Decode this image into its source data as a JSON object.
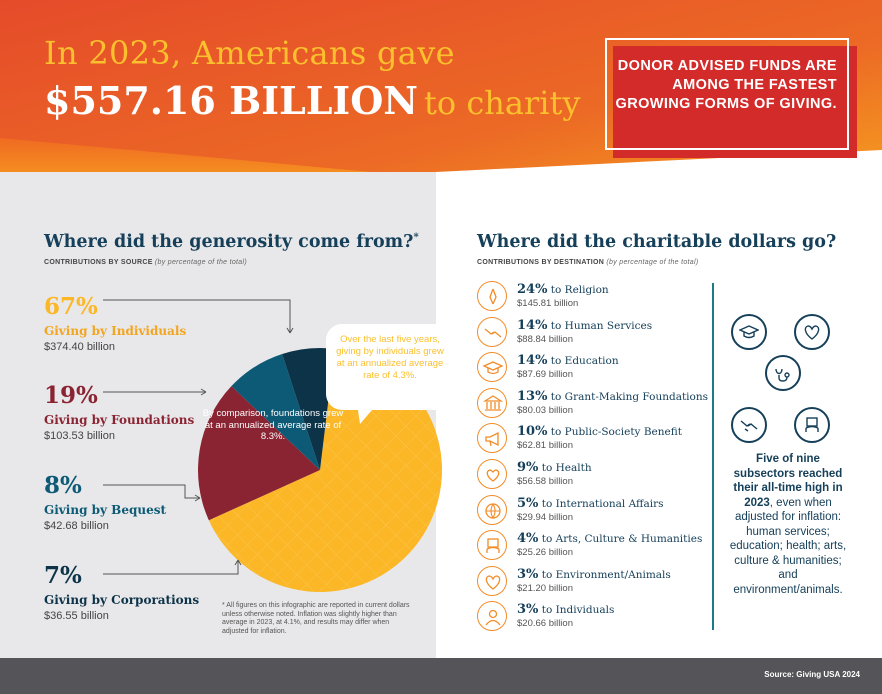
{
  "header": {
    "line1": "In 2023, Americans gave",
    "amount": "$557.16 BILLION",
    "line2_tail": "to charity",
    "callout": "DONOR ADVISED FUNDS ARE AMONG THE FASTEST GROWING FORMS OF GIVING."
  },
  "sources": {
    "title": "Where did the generosity come from?",
    "title_mark": "*",
    "subtitle": "CONTRIBUTIONS BY SOURCE",
    "subtitle_note": "(by percentage of the total)",
    "items": [
      {
        "pct": "67%",
        "name": "Giving by Individuals",
        "amount": "$374.40 billion",
        "color": "#fbb726"
      },
      {
        "pct": "19%",
        "name": "Giving by Foundations",
        "amount": "$103.53 billion",
        "color": "#8a2332"
      },
      {
        "pct": "8%",
        "name": "Giving by Bequest",
        "amount": "$42.68 billion",
        "color": "#0c5a75"
      },
      {
        "pct": "7%",
        "name": "Giving by Corporations",
        "amount": "$36.55 billion",
        "color": "#0d3348"
      }
    ],
    "bubble": "Over the last five years, giving by individuals grew at an annualized average rate of 4.3%.",
    "comparison": "By comparison, foundations grew at an annualized average rate of 8.3%.",
    "footnote": "* All figures on this infographic are reported in current dollars unless otherwise noted. Inflation was slightly higher than average in 2023, at 4.1%, and results may differ when adjusted for inflation."
  },
  "chart_data": {
    "type": "pie",
    "categories": [
      "Giving by Individuals",
      "Giving by Foundations",
      "Giving by Bequest",
      "Giving by Corporations"
    ],
    "values": [
      67,
      19,
      8,
      7
    ],
    "amounts_billion": [
      374.4,
      103.53,
      42.68,
      36.55
    ],
    "colors": [
      "#fbb726",
      "#8a2332",
      "#0c5a75",
      "#0d3348"
    ]
  },
  "destinations": {
    "title": "Where did the charitable dollars go?",
    "subtitle": "CONTRIBUTIONS BY DESTINATION",
    "subtitle_note": "(by percentage of the total)",
    "items": [
      {
        "pct": "24%",
        "label": "to Religion",
        "amount": "$145.81 billion",
        "icon": "praying-hands-icon"
      },
      {
        "pct": "14%",
        "label": "to Human Services",
        "amount": "$88.84 billion",
        "icon": "helping-hands-icon"
      },
      {
        "pct": "14%",
        "label": "to Education",
        "amount": "$87.69 billion",
        "icon": "graduation-cap-icon"
      },
      {
        "pct": "13%",
        "label": "to Grant-Making Foundations",
        "amount": "$80.03 billion",
        "icon": "bank-building-icon"
      },
      {
        "pct": "10%",
        "label": "to Public-Society Benefit",
        "amount": "$62.81 billion",
        "icon": "megaphone-icon"
      },
      {
        "pct": "9%",
        "label": "to Health",
        "amount": "$56.58 billion",
        "icon": "stethoscope-heart-icon"
      },
      {
        "pct": "5%",
        "label": "to International Affairs",
        "amount": "$29.94 billion",
        "icon": "globe-icon"
      },
      {
        "pct": "4%",
        "label": "to Arts, Culture & Humanities",
        "amount": "$25.26 billion",
        "icon": "museum-frame-icon"
      },
      {
        "pct": "3%",
        "label": "to Environment/Animals",
        "amount": "$21.20 billion",
        "icon": "leaf-heart-icon"
      },
      {
        "pct": "3%",
        "label": "to Individuals",
        "amount": "$20.66 billion",
        "icon": "person-icon"
      }
    ]
  },
  "subsectors": {
    "bold_text": "Five of nine subsectors reached their all-time high in 2023",
    "rest_text": ", even when adjusted for inflation: human services; education; health; arts, culture & humanities; and environment/animals.",
    "icons": [
      "graduation-cap-icon",
      "leaf-heart-icon",
      "stethoscope-heart-icon",
      "helping-hands-icon",
      "museum-frame-icon"
    ]
  },
  "footer": {
    "source": "Source: Giving USA 2024"
  },
  "colors": {
    "orange_dark": "#e5482a",
    "orange_light": "#f5a623",
    "navy": "#16405a",
    "teal": "#1e7a83",
    "gold": "#fbb726",
    "red": "#d32a2a"
  }
}
